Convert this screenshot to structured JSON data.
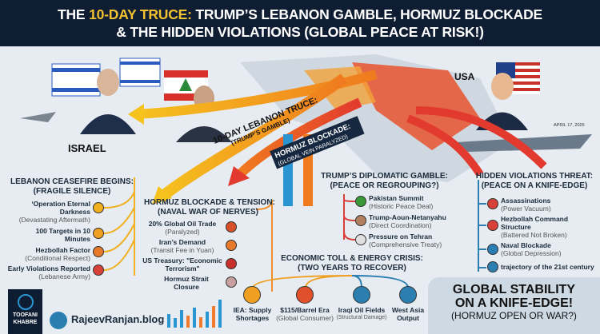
{
  "header": {
    "title_prefix": "THE ",
    "title_highlight": "10-DAY TRUCE:",
    "title_rest": " TRUMP’S LEBANON GAMBLE, HORMUZ BLOCKADE",
    "title_line2": "& THE HIDDEN VIOLATIONS (GLOBAL PEACE AT RISK!)"
  },
  "map": {
    "israel_label": "ISRAEL",
    "usa_label": "USA",
    "date": "APRIL 17, 2026",
    "truce_banner": "10-DAY LEBANON TRUCE:",
    "truce_sub": "(TRUMP’S GAMBLE)",
    "blockade_banner": "HORMUZ BLOCKADE:",
    "blockade_sub": "(GLOBAL VEIN PARALYZED)"
  },
  "lebanon": {
    "title": "LEBANON CEASEFIRE BEGINS:",
    "subtitle": "(FRAGILE SILENCE)",
    "items": [
      {
        "title": "‘Operation Eternal Darkness",
        "sub": "(Devastating Aftermath)",
        "icon": "skull-icon"
      },
      {
        "title": "100 Targets in 10 Minutes",
        "sub": "",
        "icon": "target-100-icon"
      },
      {
        "title": "Hezbollah Factor",
        "sub": "(Conditional Respect)",
        "icon": "handshake-icon"
      },
      {
        "title": "Early Violations Reported",
        "sub": "(Lebanese Army)",
        "icon": "warning-icon"
      }
    ]
  },
  "hormuz": {
    "title": "HORMUZ BLOCKADE & TENSION:",
    "subtitle": "(NAVAL WAR OF NERVES)",
    "items": [
      {
        "title": "20% Global Oil Trade",
        "sub": "(Paralyzed)",
        "icon": "oil-drop-icon"
      },
      {
        "title": "Iran’s Demand",
        "sub": "(Transit Fee in Yuan)",
        "icon": "yuan-icon"
      },
      {
        "title": "US Treasury: \"Economic Terrorism\"",
        "sub": "",
        "icon": "us-flag-icon"
      },
      {
        "title": "Hormuz Strait Closure",
        "sub": "",
        "icon": "closed-strait-icon"
      }
    ]
  },
  "economic": {
    "title": "ECONOMIC TOLL & ENERGY CRISIS:",
    "subtitle": "(TWO YEARS TO RECOVER)",
    "items": [
      {
        "title": "IEA: Supply Shortages",
        "sub": "",
        "icon": "chart-icon",
        "color": "#f0a020"
      },
      {
        "title": "$115/Barrel Era",
        "sub": "(Global Consumer)",
        "icon": "barrel-icon",
        "color": "#e0502a"
      },
      {
        "title": "Iraqi Oil Fields",
        "sub": "(Structural Damage)",
        "icon": "oil-drop-icon",
        "color": "#2a7fb0"
      },
      {
        "title": "West Asia Output",
        "sub": "",
        "icon": "factory-icon",
        "color": "#2a7fb0"
      }
    ]
  },
  "diplomatic": {
    "title": "TRUMP’S DIPLOMATIC GAMBLE:",
    "subtitle": "(PEACE OR REGROUPING?)",
    "items": [
      {
        "title": "Pakistan Summit",
        "sub": "(Historic Peace Deal)",
        "icon": "pakistan-flag-icon"
      },
      {
        "title": "Trump-Aoun-Netanyahu",
        "sub": "(Direct Coordination)",
        "icon": "leaders-icon"
      },
      {
        "title": "Pressure on Tehran",
        "sub": "(Comprehensive Treaty)",
        "icon": "iran-flag-icon"
      }
    ]
  },
  "hidden": {
    "title": "HIDDEN VIOLATIONS THREAT:",
    "subtitle": "(PEACE ON A KNIFE-EDGE)",
    "items": [
      {
        "title": "Assassinations",
        "sub": "(Power Vacuum)",
        "icon": "alert-icon",
        "color": "#d8413a"
      },
      {
        "title": "Hezbollah Command Structure",
        "sub": "(Battered Not Broken)",
        "icon": "command-icon",
        "color": "#d8413a"
      },
      {
        "title": "Naval Blockade",
        "sub": "(Global Depression)",
        "icon": "ship-icon",
        "color": "#2a7fb0"
      },
      {
        "title": "trajectory of the 21st century",
        "sub": "",
        "icon": "search-icon",
        "color": "#2a7fb0"
      }
    ]
  },
  "footer": {
    "brand_line1": "TOOFANI",
    "brand_line2": "KHABRE",
    "blog": "RajeevRanjan.blog",
    "stability_line1": "GLOBAL STABILITY",
    "stability_line2": "ON A KNIFE-EDGE!",
    "stability_line3": "(HORMUZ OPEN OR WAR?)"
  }
}
